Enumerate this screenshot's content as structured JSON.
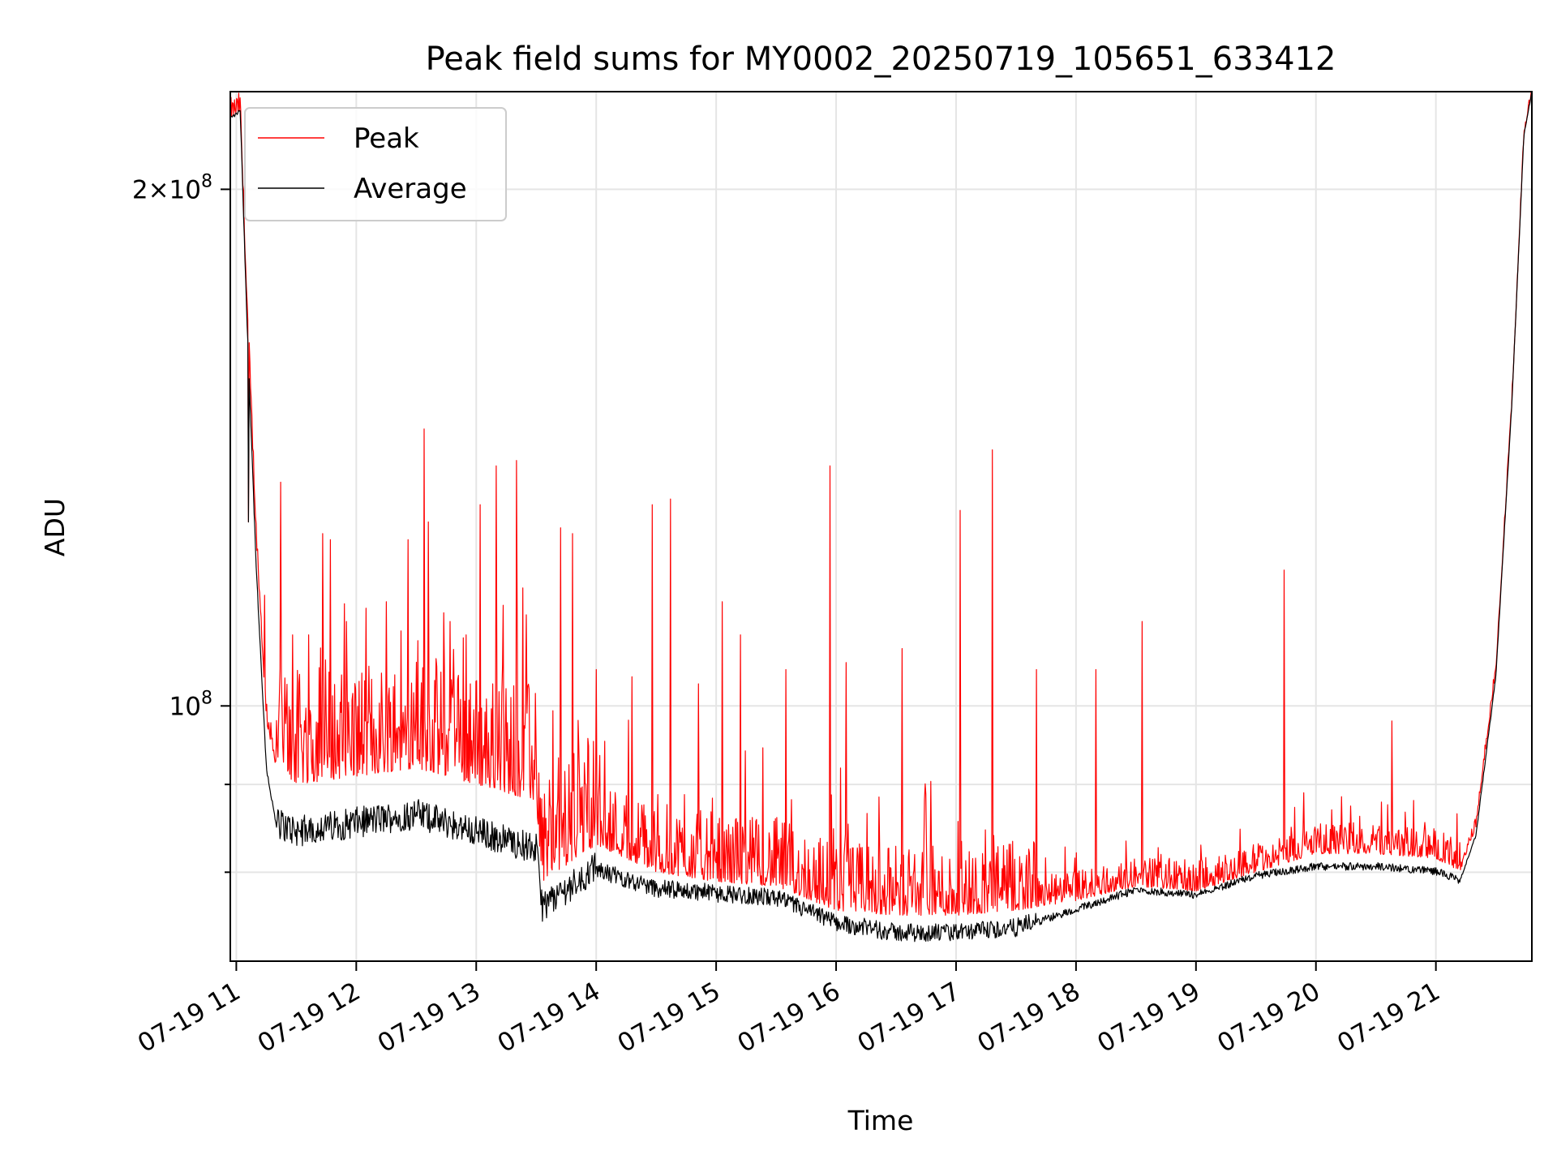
{
  "chart_data": {
    "type": "line",
    "title": "Peak field sums for MY0002_20250719_105651_633412",
    "xlabel": "Time",
    "ylabel": "ADU",
    "yscale": "log",
    "xlim": [
      "2025-07-19 10:57",
      "2025-07-19 21:48"
    ],
    "ylim": [
      71000000,
      228000000
    ],
    "grid": true,
    "legend_position": "top-left",
    "x_ticks": [
      "07-19 11",
      "07-19 12",
      "07-19 13",
      "07-19 14",
      "07-19 15",
      "07-19 16",
      "07-19 17",
      "07-19 18",
      "07-19 19",
      "07-19 20",
      "07-19 21"
    ],
    "y_ticks": [
      {
        "label": "2×10",
        "exp": "8",
        "value": 200000000
      },
      {
        "label": "10",
        "exp": "8",
        "value": 100000000
      }
    ],
    "y_minor_ticks": [
      80000000,
      90000000
    ],
    "series": [
      {
        "name": "Peak",
        "color": "#ff0000",
        "x": [
          "2025-07-19 10:57",
          "2025-07-19 11:02",
          "2025-07-19 11:05",
          "2025-07-19 11:10",
          "2025-07-19 11:15",
          "2025-07-19 11:20",
          "2025-07-19 11:30",
          "2025-07-19 12:00",
          "2025-07-19 12:30",
          "2025-07-19 13:00",
          "2025-07-19 13:30",
          "2025-07-19 13:33",
          "2025-07-19 14:00",
          "2025-07-19 14:30",
          "2025-07-19 15:00",
          "2025-07-19 15:30",
          "2025-07-19 16:00",
          "2025-07-19 16:30",
          "2025-07-19 17:00",
          "2025-07-19 17:30",
          "2025-07-19 18:00",
          "2025-07-19 18:30",
          "2025-07-19 19:00",
          "2025-07-19 19:30",
          "2025-07-19 20:00",
          "2025-07-19 20:30",
          "2025-07-19 21:00",
          "2025-07-19 21:12",
          "2025-07-19 21:20",
          "2025-07-19 21:30",
          "2025-07-19 21:38",
          "2025-07-19 21:44",
          "2025-07-19 21:48"
        ],
        "y": [
          220000000,
          222000000,
          175000000,
          125000000,
          98000000,
          92000000,
          90000000,
          91000000,
          92000000,
          90000000,
          88000000,
          79000000,
          83000000,
          80000000,
          79000000,
          78500000,
          76000000,
          75500000,
          75500000,
          76000000,
          77000000,
          78500000,
          78000000,
          80000000,
          82000000,
          82000000,
          81500000,
          80000000,
          85000000,
          105000000,
          150000000,
          215000000,
          228000000
        ]
      },
      {
        "name": "Average",
        "color": "#000000",
        "x": [
          "2025-07-19 10:57",
          "2025-07-19 11:02",
          "2025-07-19 11:05",
          "2025-07-19 11:10",
          "2025-07-19 11:15",
          "2025-07-19 11:20",
          "2025-07-19 11:30",
          "2025-07-19 12:00",
          "2025-07-19 12:30",
          "2025-07-19 13:00",
          "2025-07-19 13:30",
          "2025-07-19 13:33",
          "2025-07-19 14:00",
          "2025-07-19 14:30",
          "2025-07-19 15:00",
          "2025-07-19 15:30",
          "2025-07-19 16:00",
          "2025-07-19 16:30",
          "2025-07-19 17:00",
          "2025-07-19 17:30",
          "2025-07-19 18:00",
          "2025-07-19 18:30",
          "2025-07-19 19:00",
          "2025-07-19 19:30",
          "2025-07-19 20:00",
          "2025-07-19 20:30",
          "2025-07-19 21:00",
          "2025-07-19 21:12",
          "2025-07-19 21:20",
          "2025-07-19 21:30",
          "2025-07-19 21:38",
          "2025-07-19 21:44",
          "2025-07-19 21:48"
        ],
        "y": [
          220000000,
          222000000,
          172000000,
          120000000,
          92000000,
          85000000,
          84000000,
          85000000,
          86000000,
          84000000,
          82000000,
          76000000,
          80000000,
          78000000,
          77500000,
          77000000,
          74500000,
          73500000,
          73500000,
          74000000,
          76000000,
          78000000,
          77500000,
          79500000,
          80500000,
          80500000,
          80000000,
          79000000,
          84000000,
          104000000,
          150000000,
          215000000,
          228000000
        ]
      }
    ],
    "peak_spikes": [
      [
        "2025-07-19 11:06",
        128000000
      ],
      [
        "2025-07-19 11:14",
        116000000
      ],
      [
        "2025-07-19 11:22",
        135000000
      ],
      [
        "2025-07-19 11:28",
        110000000
      ],
      [
        "2025-07-19 11:36",
        110000000
      ],
      [
        "2025-07-19 11:43",
        126000000
      ],
      [
        "2025-07-19 11:47",
        125000000
      ],
      [
        "2025-07-19 11:55",
        112000000
      ],
      [
        "2025-07-19 12:05",
        114000000
      ],
      [
        "2025-07-19 12:15",
        115000000
      ],
      [
        "2025-07-19 12:26",
        125000000
      ],
      [
        "2025-07-19 12:34",
        145000000
      ],
      [
        "2025-07-19 12:36",
        128000000
      ],
      [
        "2025-07-19 12:47",
        112000000
      ],
      [
        "2025-07-19 12:55",
        110000000
      ],
      [
        "2025-07-19 13:02",
        131000000
      ],
      [
        "2025-07-19 13:10",
        138000000
      ],
      [
        "2025-07-19 13:20",
        139000000
      ],
      [
        "2025-07-19 13:25",
        113000000
      ],
      [
        "2025-07-19 13:42",
        127000000
      ],
      [
        "2025-07-19 13:48",
        126000000
      ],
      [
        "2025-07-19 14:00",
        105000000
      ],
      [
        "2025-07-19 14:18",
        104000000
      ],
      [
        "2025-07-19 14:28",
        131000000
      ],
      [
        "2025-07-19 14:37",
        132000000
      ],
      [
        "2025-07-19 14:51",
        103000000
      ],
      [
        "2025-07-19 15:03",
        115000000
      ],
      [
        "2025-07-19 15:12",
        110000000
      ],
      [
        "2025-07-19 15:35",
        105000000
      ],
      [
        "2025-07-19 15:57",
        138000000
      ],
      [
        "2025-07-19 16:05",
        106000000
      ],
      [
        "2025-07-19 16:33",
        108000000
      ],
      [
        "2025-07-19 16:02",
        92000000
      ],
      [
        "2025-07-19 17:02",
        130000000
      ],
      [
        "2025-07-19 17:18",
        141000000
      ],
      [
        "2025-07-19 17:40",
        105000000
      ],
      [
        "2025-07-19 18:10",
        105000000
      ],
      [
        "2025-07-19 18:33",
        112000000
      ],
      [
        "2025-07-19 19:44",
        120000000
      ],
      [
        "2025-07-19 19:54",
        89000000
      ],
      [
        "2025-07-19 20:08",
        87000000
      ],
      [
        "2025-07-19 20:38",
        98000000
      ]
    ]
  },
  "legend": {
    "entries": [
      {
        "label": "Peak",
        "color": "#ff0000"
      },
      {
        "label": "Average",
        "color": "#000000"
      }
    ]
  }
}
